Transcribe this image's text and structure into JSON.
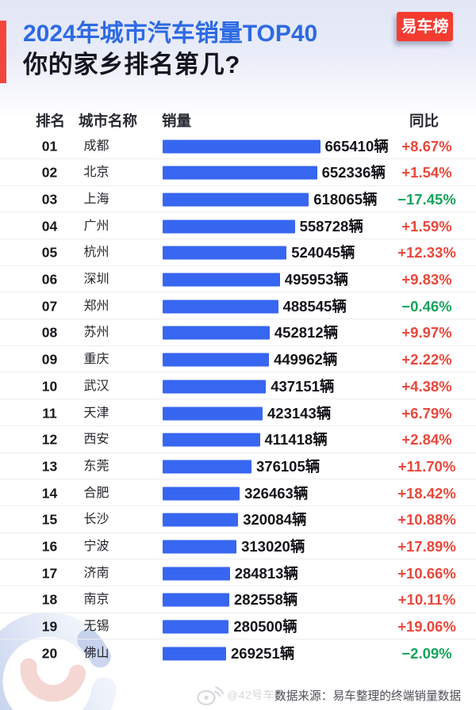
{
  "title": {
    "line1": "2024年城市汽车销量TOP40",
    "line2": "你的家乡排名第几?"
  },
  "badge": {
    "label": "易车榜"
  },
  "table": {
    "headers": {
      "rank": "排名",
      "city": "城市名称",
      "sales": "销量",
      "yoy": "同比"
    }
  },
  "footer": {
    "watermark": "@42号车库",
    "source": "数据来源：易车整理的终端销量数据"
  },
  "colors": {
    "title_blue": "#2d6ae4",
    "accent_red": "#f2463c",
    "badge_red": "#f43b30",
    "bar_blue": "#3766f0",
    "yoy_positive_red": "#e9483b",
    "yoy_negative_green": "#17a45c"
  },
  "chart_data": {
    "type": "bar",
    "orientation": "horizontal",
    "title": "2024年城市汽车销量TOP40",
    "subtitle": "你的家乡排名第几?",
    "value_unit": "辆",
    "legend": null,
    "xlim": [
      0,
      665410
    ],
    "ranks": [
      "01",
      "02",
      "03",
      "04",
      "05",
      "06",
      "07",
      "08",
      "09",
      "10",
      "11",
      "12",
      "13",
      "14",
      "15",
      "16",
      "17",
      "18",
      "19",
      "20"
    ],
    "categories": [
      "成都",
      "北京",
      "上海",
      "广州",
      "杭州",
      "深圳",
      "郑州",
      "苏州",
      "重庆",
      "武汉",
      "天津",
      "西安",
      "东莞",
      "合肥",
      "长沙",
      "宁波",
      "济南",
      "南京",
      "无锡",
      "佛山"
    ],
    "values": [
      665410,
      652336,
      618065,
      558728,
      524045,
      495953,
      488545,
      452812,
      449962,
      437151,
      423143,
      411418,
      376105,
      326463,
      320084,
      313020,
      284813,
      282558,
      280500,
      269251
    ],
    "yoy": [
      "+8.67%",
      "+1.54%",
      "−17.45%",
      "+1.59%",
      "+12.33%",
      "+9.83%",
      "−0.46%",
      "+9.97%",
      "+2.22%",
      "+4.38%",
      "+6.79%",
      "+2.84%",
      "+11.70%",
      "+18.42%",
      "+10.88%",
      "+17.89%",
      "+10.66%",
      "+10.11%",
      "+19.06%",
      "−2.09%"
    ]
  }
}
